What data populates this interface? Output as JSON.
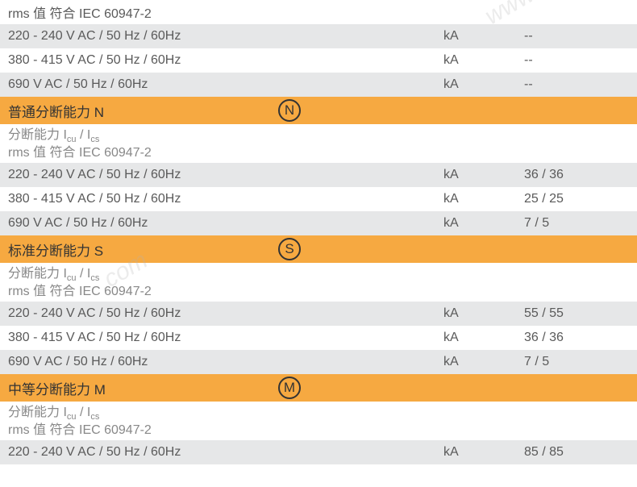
{
  "intro": {
    "rms_label": "rms 值 符合 IEC 60947-2",
    "rows": [
      {
        "label": "220 - 240 V AC / 50 Hz / 60Hz",
        "unit": "kA",
        "value": "--"
      },
      {
        "label": "380 - 415 V AC / 50 Hz / 60Hz",
        "unit": "kA",
        "value": "--"
      },
      {
        "label": "690 V AC / 50 Hz / 60Hz",
        "unit": "kA",
        "value": "--"
      }
    ]
  },
  "sections": [
    {
      "title": "普通分断能力 N",
      "badge": "N",
      "sub_line1_prefix": "分断能力 I",
      "sub_line1_sub1": "cu",
      "sub_line1_mid": " / I",
      "sub_line1_sub2": "cs",
      "sub_line2": "rms 值 符合 IEC 60947-2",
      "rows": [
        {
          "label": "220 - 240 V AC / 50 Hz / 60Hz",
          "unit": "kA",
          "value": "36 / 36"
        },
        {
          "label": "380 - 415 V AC / 50 Hz / 60Hz",
          "unit": "kA",
          "value": "25 / 25"
        },
        {
          "label": "690 V AC / 50 Hz / 60Hz",
          "unit": "kA",
          "value": "7 / 5"
        }
      ]
    },
    {
      "title": "标准分断能力 S",
      "badge": "S",
      "sub_line1_prefix": "分断能力 I",
      "sub_line1_sub1": "cu",
      "sub_line1_mid": " / I",
      "sub_line1_sub2": "cs",
      "sub_line2": "rms 值 符合 IEC 60947-2",
      "rows": [
        {
          "label": "220 - 240 V AC / 50 Hz / 60Hz",
          "unit": "kA",
          "value": "55 / 55"
        },
        {
          "label": "380 - 415 V AC / 50 Hz / 60Hz",
          "unit": "kA",
          "value": "36 / 36"
        },
        {
          "label": "690 V AC / 50 Hz / 60Hz",
          "unit": "kA",
          "value": "7 / 5"
        }
      ]
    },
    {
      "title": "中等分断能力 M",
      "badge": "M",
      "sub_line1_prefix": "分断能力 I",
      "sub_line1_sub1": "cu",
      "sub_line1_mid": " / I",
      "sub_line1_sub2": "cs",
      "sub_line2": "rms 值 符合 IEC 60947-2",
      "rows": [
        {
          "label": "220 - 240 V AC / 50 Hz / 60Hz",
          "unit": "kA",
          "value": "85 / 85"
        }
      ]
    }
  ],
  "colors": {
    "orange": "#f6a941",
    "light_gray": "#e6e7e8",
    "text": "#5a5a5a"
  }
}
